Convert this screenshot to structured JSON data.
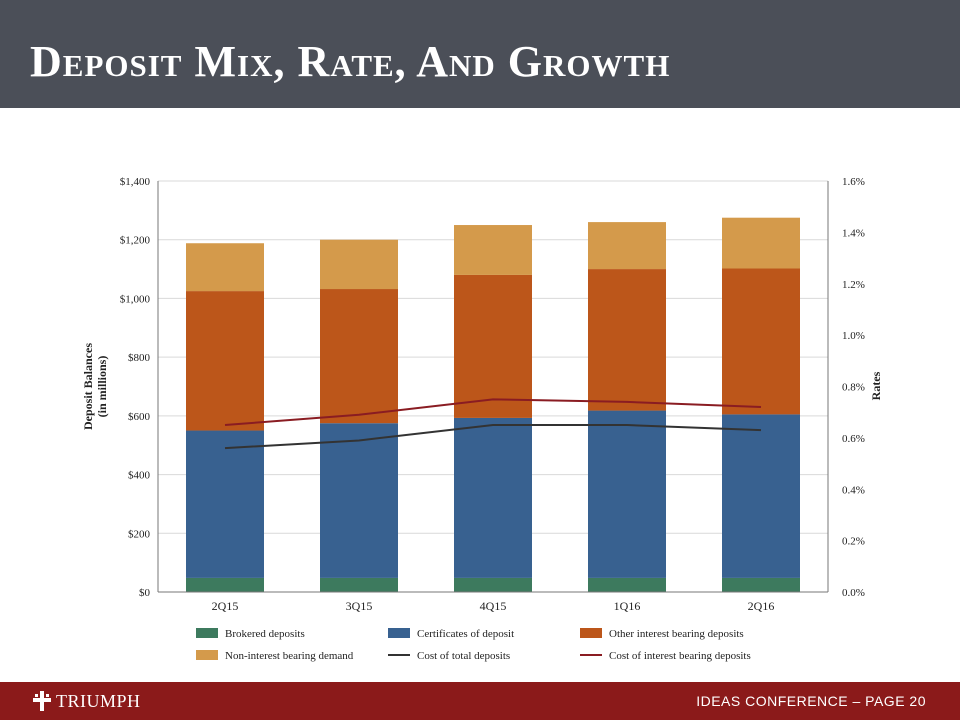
{
  "slide": {
    "title": "Deposit Mix, Rate, And Growth",
    "footer_text": "IDEAS CONFERENCE – PAGE 20",
    "logo_text": "TRIUMPH"
  },
  "colors": {
    "header_bg": "#4b4f58",
    "footer_bg": "#8b1a1a",
    "brokered": "#3d7a5e",
    "certificates": "#386190",
    "other_interest": "#bc561a",
    "non_interest": "#d49a4b",
    "cost_total": "#333333",
    "cost_interest": "#8a1c22",
    "gridline": "#d9d9d9"
  },
  "chart_data": {
    "type": "bar",
    "stacked": true,
    "categories": [
      "2Q15",
      "3Q15",
      "4Q15",
      "1Q16",
      "2Q16"
    ],
    "ylabel": "Deposit Balances\n(in millions)",
    "ylabel_lines": [
      "Deposit Balances",
      "(in millions)"
    ],
    "y2label": "Rates",
    "ylim": [
      0,
      1400
    ],
    "y2lim": [
      0,
      0.016
    ],
    "y_ticks": [
      0,
      200,
      400,
      600,
      800,
      1000,
      1200,
      1400
    ],
    "y_tick_labels": [
      "$0",
      "$200",
      "$400",
      "$600",
      "$800",
      "$1,000",
      "$1,200",
      "$1,400"
    ],
    "y2_ticks": [
      0,
      0.002,
      0.004,
      0.006,
      0.008,
      0.01,
      0.012,
      0.014,
      0.016
    ],
    "y2_tick_labels": [
      "0.0%",
      "0.2%",
      "0.4%",
      "0.6%",
      "0.8%",
      "1.0%",
      "1.2%",
      "1.4%",
      "1.6%"
    ],
    "grid": true,
    "legend_position": "bottom",
    "series": [
      {
        "name": "Brokered deposits",
        "kind": "bar",
        "axis": "left",
        "color_key": "brokered",
        "values": [
          48,
          48,
          48,
          48,
          48
        ]
      },
      {
        "name": "Certificates of deposit",
        "kind": "bar",
        "axis": "left",
        "color_key": "certificates",
        "values": [
          502,
          527,
          545,
          570,
          557
        ]
      },
      {
        "name": "Other interest bearing deposits",
        "kind": "bar",
        "axis": "left",
        "color_key": "other_interest",
        "values": [
          475,
          457,
          487,
          482,
          497
        ]
      },
      {
        "name": "Non-interest bearing demand",
        "kind": "bar",
        "axis": "left",
        "color_key": "non_interest",
        "values": [
          163,
          168,
          170,
          160,
          173
        ]
      },
      {
        "name": "Cost of total deposits",
        "kind": "line",
        "axis": "right",
        "color_key": "cost_total",
        "values": [
          0.0056,
          0.0059,
          0.0065,
          0.0065,
          0.0063
        ]
      },
      {
        "name": "Cost of interest bearing deposits",
        "kind": "line",
        "axis": "right",
        "color_key": "cost_interest",
        "values": [
          0.0065,
          0.0069,
          0.0075,
          0.0074,
          0.0072
        ]
      }
    ]
  }
}
